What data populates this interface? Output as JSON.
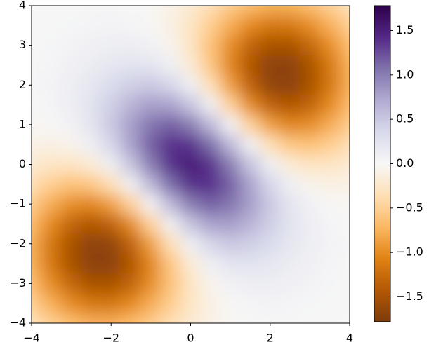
{
  "chart_data": {
    "type": "heatmap",
    "x": [
      -4,
      -3.5,
      -3,
      -2.5,
      -2,
      -1.5,
      -1,
      -0.5,
      0,
      0.5,
      1,
      1.5,
      2,
      2.5,
      3,
      3.5,
      4
    ],
    "y": [
      -4,
      -3.5,
      -3,
      -2.5,
      -2,
      -1.5,
      -1,
      -0.5,
      0,
      0.5,
      1,
      1.5,
      2,
      2.5,
      3,
      3.5,
      4
    ],
    "z": [
      [
        -0.36,
        -0.52,
        -0.68,
        -0.78,
        -0.79,
        -0.7,
        -0.55,
        -0.37,
        -0.21,
        -0.1,
        -0.03,
        0.01,
        0.02,
        0.02,
        0.01,
        0.01,
        0.0
      ],
      [
        -0.52,
        -0.77,
        -1.0,
        -1.15,
        -1.16,
        -1.02,
        -0.79,
        -0.52,
        -0.28,
        -0.11,
        -0.01,
        0.04,
        0.05,
        0.04,
        0.03,
        0.01,
        0.01
      ],
      [
        -0.68,
        -1.0,
        -1.3,
        -1.49,
        -1.49,
        -1.31,
        -0.99,
        -0.62,
        -0.29,
        -0.06,
        0.07,
        0.12,
        0.11,
        0.08,
        0.05,
        0.03,
        0.01
      ],
      [
        -0.78,
        -1.15,
        -1.49,
        -1.69,
        -1.68,
        -1.44,
        -1.04,
        -0.58,
        -0.18,
        0.1,
        0.23,
        0.25,
        0.21,
        0.14,
        0.08,
        0.04,
        0.02
      ],
      [
        -0.79,
        -1.16,
        -1.49,
        -1.68,
        -1.64,
        -1.34,
        -0.87,
        -0.35,
        0.1,
        0.38,
        0.49,
        0.44,
        0.33,
        0.21,
        0.11,
        0.05,
        0.02
      ],
      [
        -0.7,
        -1.02,
        -1.31,
        -1.44,
        -1.34,
        -1.0,
        -0.48,
        0.08,
        0.52,
        0.76,
        0.79,
        0.65,
        0.44,
        0.25,
        0.12,
        0.04,
        0.01
      ],
      [
        -0.55,
        -0.79,
        -0.99,
        -1.04,
        -0.87,
        -0.48,
        0.06,
        0.61,
        1.0,
        1.15,
        1.05,
        0.79,
        0.49,
        0.23,
        0.07,
        -0.01,
        -0.03
      ],
      [
        -0.37,
        -0.52,
        -0.62,
        -0.58,
        -0.35,
        0.08,
        0.61,
        1.09,
        1.38,
        1.39,
        1.15,
        0.76,
        0.38,
        0.1,
        -0.06,
        -0.11,
        -0.1
      ],
      [
        -0.21,
        -0.28,
        -0.29,
        -0.18,
        0.1,
        0.52,
        1.0,
        1.38,
        1.53,
        1.38,
        1.0,
        0.52,
        0.1,
        -0.18,
        -0.29,
        -0.28,
        -0.21
      ],
      [
        -0.1,
        -0.11,
        -0.06,
        0.1,
        0.38,
        0.76,
        1.15,
        1.39,
        1.38,
        1.09,
        0.61,
        0.08,
        -0.35,
        -0.58,
        -0.62,
        -0.52,
        -0.37
      ],
      [
        -0.03,
        -0.01,
        0.07,
        0.23,
        0.49,
        0.79,
        1.05,
        1.15,
        1.0,
        0.61,
        0.06,
        -0.48,
        -0.87,
        -1.04,
        -0.99,
        -0.79,
        -0.55
      ],
      [
        0.01,
        0.04,
        0.12,
        0.25,
        0.44,
        0.65,
        0.79,
        0.76,
        0.52,
        0.08,
        -0.48,
        -1.0,
        -1.34,
        -1.44,
        -1.31,
        -1.02,
        -0.7
      ],
      [
        0.02,
        0.05,
        0.11,
        0.21,
        0.33,
        0.44,
        0.49,
        0.38,
        0.1,
        -0.35,
        -0.87,
        -1.34,
        -1.64,
        -1.68,
        -1.49,
        -1.16,
        -0.79
      ],
      [
        0.02,
        0.04,
        0.08,
        0.14,
        0.21,
        0.25,
        0.23,
        0.1,
        -0.18,
        -0.58,
        -1.04,
        -1.44,
        -1.68,
        -1.69,
        -1.49,
        -1.15,
        -0.78
      ],
      [
        0.01,
        0.03,
        0.05,
        0.08,
        0.11,
        0.12,
        0.07,
        -0.06,
        -0.29,
        -0.62,
        -0.99,
        -1.31,
        -1.49,
        -1.49,
        -1.3,
        -1.0,
        -0.68
      ],
      [
        0.01,
        0.01,
        0.03,
        0.04,
        0.05,
        0.04,
        -0.01,
        -0.11,
        -0.28,
        -0.52,
        -0.79,
        -1.02,
        -1.16,
        -1.15,
        -1.0,
        -0.77,
        -0.52
      ],
      [
        0.0,
        0.01,
        0.01,
        0.02,
        0.02,
        0.01,
        -0.03,
        -0.1,
        -0.21,
        -0.37,
        -0.55,
        -0.7,
        -0.79,
        -0.78,
        -0.68,
        -0.52,
        -0.36
      ]
    ],
    "xlim": [
      -4,
      4
    ],
    "ylim": [
      -4,
      4
    ],
    "xticks": [
      {
        "value": -4,
        "label": "−4"
      },
      {
        "value": -2,
        "label": "−2"
      },
      0,
      2,
      4
    ],
    "yticks": [
      {
        "value": -4,
        "label": "−4"
      },
      {
        "value": -3,
        "label": "−3"
      },
      {
        "value": -2,
        "label": "−2"
      },
      {
        "value": -1,
        "label": "−1"
      },
      0,
      1,
      2,
      3,
      4
    ],
    "clim": [
      -1.78,
      1.78
    ],
    "colors": [
      "#7f3b08",
      "#b35806",
      "#e08214",
      "#fdb863",
      "#fee0b6",
      "#f7f7f7",
      "#d8daeb",
      "#b2abd2",
      "#8073ac",
      "#542788",
      "#2d004b"
    ],
    "cbar_ticks": [
      {
        "value": -1.5,
        "label": "−1.5"
      },
      {
        "value": -1,
        "label": "−1.0"
      },
      {
        "value": -0.5,
        "label": "−0.5"
      },
      {
        "value": 0,
        "label": "0.0"
      },
      0.5,
      {
        "value": 1,
        "label": "1.0"
      },
      1.5
    ]
  }
}
